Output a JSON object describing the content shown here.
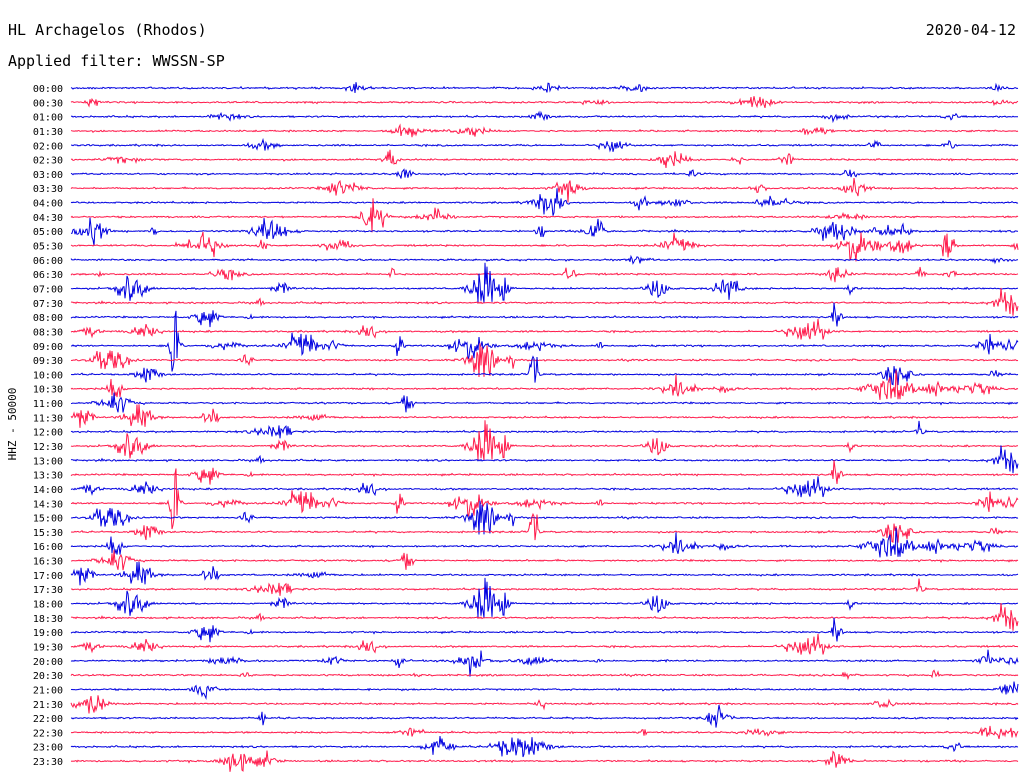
{
  "header": {
    "station": "HL Archagelos (Rhodos)",
    "date": "2020-04-12",
    "filter": "Applied filter: WWSSN-SP"
  },
  "chart_data": {
    "type": "line",
    "channel_label": "HHZ - 50000",
    "trace_times": [
      "00:00",
      "00:30",
      "01:00",
      "01:30",
      "02:00",
      "02:30",
      "03:00",
      "03:30",
      "04:00",
      "04:30",
      "05:00",
      "05:30",
      "06:00",
      "06:30",
      "07:00",
      "07:30",
      "08:00",
      "08:30",
      "09:00",
      "09:30",
      "10:00",
      "10:30",
      "11:00",
      "11:30",
      "12:00",
      "12:30",
      "13:00",
      "13:30",
      "14:00",
      "14:30",
      "15:00",
      "15:30",
      "16:00",
      "16:30",
      "17:00",
      "17:30",
      "18:00",
      "18:30",
      "19:00",
      "19:30",
      "20:00",
      "20:30",
      "21:00",
      "21:30",
      "22:00",
      "22:30",
      "23:00",
      "23:30"
    ],
    "colors": {
      "even_trace": "#0000e0",
      "odd_trace": "#ff1a4b",
      "text": "#000000"
    }
  }
}
